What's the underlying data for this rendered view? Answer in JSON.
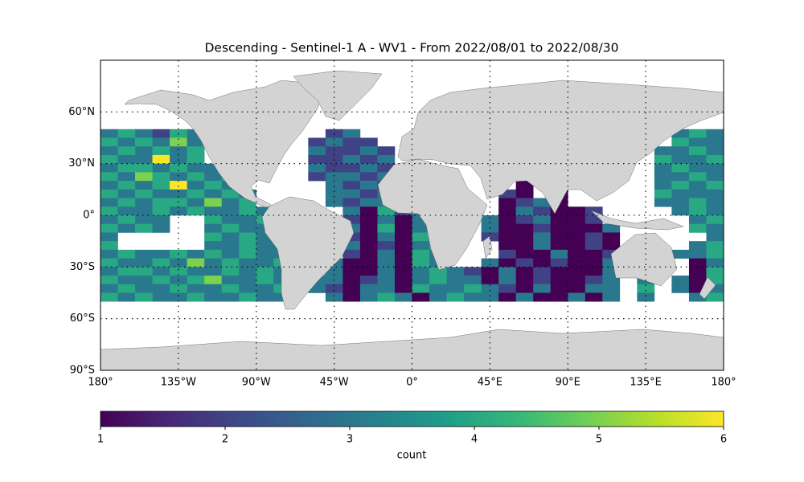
{
  "chart_data": {
    "type": "heatmap-map",
    "title": "Descending - Sentinel-1 A - WV1 - From 2022/08/01 to 2022/08/30",
    "xlim": [
      -180,
      180
    ],
    "ylim": [
      -90,
      90
    ],
    "xticks": [
      {
        "value": -180,
        "label": "180°"
      },
      {
        "value": -135,
        "label": "135°W"
      },
      {
        "value": -90,
        "label": "90°W"
      },
      {
        "value": -45,
        "label": "45°W"
      },
      {
        "value": 0,
        "label": "0°"
      },
      {
        "value": 45,
        "label": "45°E"
      },
      {
        "value": 90,
        "label": "90°E"
      },
      {
        "value": 135,
        "label": "135°E"
      },
      {
        "value": 180,
        "label": "180°"
      }
    ],
    "yticks": [
      {
        "value": -90,
        "label": "90°S"
      },
      {
        "value": -60,
        "label": "60°S"
      },
      {
        "value": -30,
        "label": "30°S"
      },
      {
        "value": 0,
        "label": "0°"
      },
      {
        "value": 30,
        "label": "30°N"
      },
      {
        "value": 60,
        "label": "60°N"
      }
    ],
    "grid": true,
    "xbins": [
      -180,
      -170,
      -160,
      -150,
      -140,
      -130,
      -120,
      -110,
      -100,
      -90,
      -80,
      -70,
      -60,
      -50,
      -40,
      -30,
      -20,
      -10,
      0,
      10,
      20,
      30,
      40,
      50,
      60,
      70,
      80,
      90,
      100,
      110,
      120,
      130,
      140,
      150,
      160,
      170,
      180
    ],
    "ybins": [
      50,
      45,
      40,
      35,
      30,
      25,
      20,
      15,
      10,
      5,
      0,
      -5,
      -10,
      -15,
      -20,
      -25,
      -30,
      -35,
      -40,
      -45,
      -50
    ],
    "values": [
      [
        3,
        4,
        3,
        2,
        4,
        3,
        null,
        null,
        null,
        null,
        null,
        null,
        null,
        2,
        3,
        null,
        null,
        null,
        null,
        null,
        null,
        null,
        null,
        null,
        null,
        null,
        null,
        null,
        null,
        null,
        null,
        null,
        null,
        3,
        4,
        3
      ],
      [
        4,
        3,
        4,
        3,
        5,
        3,
        3,
        null,
        null,
        null,
        null,
        null,
        2,
        3,
        2,
        2,
        null,
        null,
        null,
        null,
        null,
        null,
        null,
        null,
        null,
        null,
        null,
        null,
        null,
        null,
        null,
        null,
        null,
        4,
        3,
        3
      ],
      [
        3,
        4,
        3,
        4,
        3,
        4,
        null,
        null,
        null,
        null,
        null,
        null,
        3,
        2,
        2,
        3,
        2,
        null,
        null,
        null,
        null,
        null,
        null,
        null,
        null,
        null,
        null,
        null,
        null,
        null,
        null,
        null,
        3,
        3,
        4,
        3
      ],
      [
        4,
        3,
        3,
        6,
        3,
        4,
        null,
        null,
        null,
        null,
        null,
        null,
        2,
        2,
        3,
        2,
        3,
        null,
        null,
        null,
        null,
        null,
        null,
        null,
        null,
        null,
        null,
        null,
        null,
        null,
        null,
        null,
        4,
        3,
        3,
        4
      ],
      [
        3,
        4,
        4,
        3,
        4,
        3,
        3,
        null,
        null,
        null,
        null,
        null,
        3,
        2,
        2,
        3,
        2,
        null,
        null,
        null,
        null,
        null,
        null,
        null,
        null,
        null,
        null,
        null,
        null,
        null,
        null,
        null,
        3,
        4,
        3,
        3
      ],
      [
        4,
        3,
        5,
        4,
        3,
        4,
        3,
        4,
        null,
        null,
        null,
        null,
        2,
        3,
        3,
        2,
        3,
        null,
        null,
        null,
        null,
        null,
        null,
        null,
        null,
        null,
        null,
        null,
        null,
        null,
        null,
        null,
        3,
        3,
        4,
        3
      ],
      [
        3,
        4,
        3,
        4,
        6,
        3,
        4,
        3,
        null,
        null,
        null,
        null,
        null,
        3,
        2,
        3,
        2,
        null,
        null,
        null,
        null,
        null,
        null,
        null,
        1,
        null,
        1,
        null,
        null,
        null,
        null,
        null,
        3,
        4,
        3,
        4
      ],
      [
        4,
        3,
        4,
        3,
        3,
        4,
        3,
        4,
        3,
        null,
        null,
        null,
        null,
        3,
        3,
        2,
        3,
        null,
        null,
        null,
        null,
        null,
        null,
        2,
        1,
        null,
        1,
        null,
        null,
        null,
        null,
        null,
        4,
        3,
        3,
        3
      ],
      [
        3,
        4,
        3,
        4,
        4,
        3,
        5,
        3,
        4,
        null,
        null,
        null,
        null,
        3,
        2,
        3,
        3,
        4,
        null,
        null,
        null,
        null,
        null,
        1,
        2,
        3,
        1,
        null,
        null,
        null,
        null,
        null,
        3,
        3,
        4,
        3
      ],
      [
        4,
        3,
        3,
        4,
        3,
        4,
        3,
        3,
        4,
        3,
        null,
        null,
        null,
        null,
        3,
        1,
        4,
        2,
        3,
        null,
        null,
        null,
        null,
        1,
        3,
        2,
        1,
        1,
        2,
        null,
        null,
        null,
        null,
        3,
        4,
        3
      ],
      [
        3,
        4,
        3,
        3,
        null,
        null,
        4,
        3,
        3,
        4,
        null,
        null,
        null,
        null,
        2,
        1,
        3,
        1,
        3,
        null,
        null,
        null,
        3,
        1,
        2,
        3,
        1,
        1,
        2,
        null,
        null,
        null,
        null,
        null,
        3,
        4
      ],
      [
        4,
        3,
        4,
        3,
        null,
        null,
        3,
        4,
        3,
        3,
        null,
        null,
        null,
        null,
        3,
        1,
        4,
        1,
        3,
        4,
        null,
        null,
        3,
        1,
        1,
        2,
        1,
        1,
        1,
        3,
        null,
        null,
        null,
        null,
        4,
        3
      ],
      [
        3,
        null,
        null,
        null,
        null,
        null,
        4,
        3,
        4,
        3,
        null,
        null,
        null,
        null,
        2,
        1,
        3,
        1,
        4,
        3,
        null,
        null,
        2,
        1,
        1,
        3,
        1,
        1,
        2,
        1,
        null,
        null,
        null,
        null,
        null,
        3
      ],
      [
        4,
        null,
        null,
        null,
        null,
        null,
        3,
        3,
        4,
        3,
        3,
        null,
        null,
        null,
        3,
        1,
        2,
        1,
        3,
        4,
        null,
        null,
        null,
        1,
        1,
        3,
        1,
        1,
        2,
        1,
        null,
        null,
        null,
        null,
        3,
        4
      ],
      [
        3,
        4,
        3,
        3,
        4,
        3,
        4,
        3,
        4,
        3,
        3,
        null,
        null,
        null,
        2,
        1,
        3,
        1,
        4,
        3,
        null,
        null,
        null,
        2,
        1,
        1,
        3,
        1,
        1,
        2,
        null,
        null,
        null,
        3,
        3,
        4
      ],
      [
        4,
        3,
        3,
        4,
        3,
        5,
        3,
        4,
        3,
        3,
        4,
        null,
        null,
        3,
        1,
        1,
        3,
        1,
        4,
        3,
        null,
        null,
        3,
        1,
        2,
        1,
        2,
        1,
        1,
        3,
        null,
        null,
        null,
        null,
        1,
        3
      ],
      [
        3,
        4,
        4,
        3,
        4,
        3,
        3,
        4,
        3,
        4,
        3,
        null,
        4,
        3,
        1,
        1,
        3,
        1,
        3,
        4,
        3,
        2,
        1,
        3,
        1,
        2,
        1,
        1,
        1,
        3,
        null,
        null,
        null,
        null,
        1,
        4
      ],
      [
        4,
        3,
        3,
        4,
        3,
        4,
        5,
        3,
        3,
        4,
        3,
        null,
        3,
        3,
        1,
        2,
        3,
        1,
        3,
        4,
        3,
        3,
        1,
        3,
        1,
        2,
        1,
        1,
        2,
        3,
        null,
        3,
        null,
        3,
        1,
        4
      ],
      [
        3,
        4,
        3,
        3,
        4,
        3,
        3,
        4,
        3,
        3,
        4,
        null,
        3,
        2,
        1,
        3,
        3,
        1,
        4,
        3,
        3,
        4,
        3,
        2,
        1,
        3,
        1,
        1,
        3,
        3,
        null,
        4,
        null,
        3,
        1,
        3
      ],
      [
        4,
        3,
        4,
        3,
        3,
        4,
        3,
        3,
        4,
        3,
        3,
        null,
        null,
        3,
        1,
        3,
        4,
        3,
        1,
        3,
        4,
        3,
        3,
        1,
        3,
        1,
        1,
        3,
        1,
        3,
        null,
        3,
        null,
        null,
        3,
        4
      ]
    ],
    "clim": [
      1,
      6
    ],
    "cticks": [
      1,
      2,
      3,
      4,
      5,
      6
    ],
    "clabel": "count",
    "colormap": [
      "#440154",
      "#482878",
      "#3e4989",
      "#31688e",
      "#26828e",
      "#1f9e89",
      "#35b779",
      "#6ece58",
      "#b5de2b",
      "#fde725"
    ],
    "land_color": "#d3d3d3"
  }
}
